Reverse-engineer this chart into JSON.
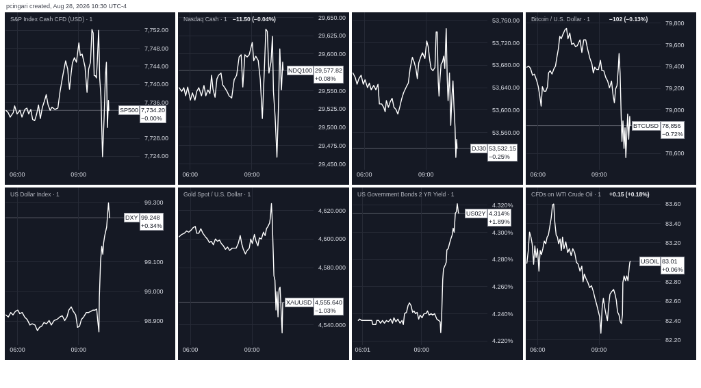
{
  "chart_data": [
    {
      "type": "line",
      "title": "S&P Index Cash CFD (USD) · 1",
      "annotations": [
        "pcingari created, Aug 28, 2026 10:30 UTC-4"
      ],
      "x": [
        5.44,
        5.55,
        5.65,
        5.8,
        5.87,
        5.99,
        6.13,
        6.23,
        6.37,
        6.47,
        6.56,
        6.66,
        6.75,
        6.85,
        6.94,
        7.04,
        7.13,
        7.23,
        7.34,
        7.42,
        7.51,
        7.61,
        7.7,
        7.85,
        7.99,
        8.09,
        8.23,
        8.37,
        8.47,
        8.56,
        8.64,
        8.7,
        8.8,
        8.9,
        9.02,
        9.09,
        9.18,
        9.32,
        9.42,
        9.5,
        9.59,
        9.66,
        9.72,
        9.77,
        9.83,
        9.88,
        9.92,
        9.99,
        10.04,
        10.1,
        10.18,
        10.26,
        10.32,
        10.37,
        10.42,
        10.47,
        10.49
      ],
      "series": [
        {
          "color": "#ffffff",
          "values": [
            7734.2,
            7733.7,
            7732.7,
            7733.7,
            7735.2,
            7733.4,
            7734.2,
            7732.7,
            7734.4,
            7734.7,
            7733.4,
            7734.4,
            7732.2,
            7731.9,
            7733.2,
            7735.4,
            7732.4,
            7734.9,
            7736.4,
            7737.7,
            7735.4,
            7734.2,
            7734.9,
            7734.4,
            7734.7,
            7738.2,
            7741.9,
            7745.2,
            7743.4,
            7738.9,
            7742.4,
            7744.7,
            7745.9,
            7744.9,
            7749.2,
            7746.4,
            7746.7,
            7743.9,
            7738.2,
            7743.4,
            7744.9,
            7752.2,
            7751.4,
            7741.9,
            7741.9,
            7741.4,
            7744.9,
            7752.0,
            7741.4,
            7737.4,
            7723.9,
            7732.9,
            7741.9,
            7744.9,
            7730.4,
            7736.4,
            7734.2
          ]
        }
      ],
      "xlim": [
        5.42,
        12.0
      ],
      "xticks": [
        {
          "value": 6,
          "label": "06:00"
        },
        {
          "value": 9,
          "label": "09:00"
        }
      ],
      "ylim": [
        7721,
        7756
      ],
      "yticks": [
        {
          "value": 7724,
          "label": "7,724.00"
        },
        {
          "value": 7728,
          "label": "7,728.00"
        },
        {
          "value": 7736,
          "label": "7,736.00"
        },
        {
          "value": 7740,
          "label": "7,740.00"
        },
        {
          "value": 7744,
          "label": "7,744.00"
        },
        {
          "value": 7748,
          "label": "7,748.00"
        },
        {
          "value": 7752,
          "label": "7,752.00"
        }
      ],
      "grid": true,
      "ref_lines": [
        {
          "axis": "y",
          "value": 7734.2,
          "label": "SP500\n7,734.20\n−0.00%",
          "color": "#5d606b"
        }
      ]
    },
    {
      "type": "line",
      "title": "Nasdaq Cash · 1",
      "subtitle": "−11.50 (−0.04%)",
      "x": [
        5.46,
        5.59,
        5.69,
        5.78,
        5.88,
        6.01,
        6.11,
        6.23,
        6.32,
        6.42,
        6.55,
        6.67,
        6.76,
        6.86,
        6.96,
        7.04,
        7.11,
        7.21,
        7.3,
        7.38,
        7.5,
        7.58,
        7.68,
        7.79,
        7.89,
        8.02,
        8.14,
        8.26,
        8.38,
        8.48,
        8.56,
        8.66,
        8.77,
        8.87,
        9.02,
        9.09,
        9.19,
        9.31,
        9.41,
        9.51,
        9.61,
        9.68,
        9.75,
        9.83,
        9.93,
        10.0,
        10.05,
        10.13,
        10.22,
        10.29,
        10.36,
        10.44,
        10.5,
        10.52
      ],
      "series": [
        {
          "color": "#ffffff",
          "values": [
            29554,
            29549,
            29554,
            29543,
            29555,
            29537,
            29547,
            29537,
            29549,
            29554,
            29543,
            29557,
            29543,
            29551,
            29546,
            29571,
            29552,
            29541,
            29566,
            29571,
            29574,
            29558,
            29554,
            29549,
            29543,
            29540,
            29565,
            29571,
            29596,
            29599,
            29555,
            29599,
            29596,
            29599,
            29616,
            29591,
            29597,
            29591,
            29565,
            29512,
            29580,
            29634,
            29631,
            29574,
            29589,
            29624,
            29549,
            29515,
            29459,
            29524,
            29607,
            29551,
            29589,
            29578
          ]
        }
      ],
      "xlim": [
        5.44,
        12.0
      ],
      "xticks": [
        {
          "value": 6,
          "label": "06:00"
        },
        {
          "value": 9,
          "label": "09:00"
        }
      ],
      "ylim": [
        29442,
        29657
      ],
      "yticks": [
        {
          "value": 29450,
          "label": "29,450.00"
        },
        {
          "value": 29475,
          "label": "29,475.00"
        },
        {
          "value": 29500,
          "label": "29,500.00"
        },
        {
          "value": 29525,
          "label": "29,525.00"
        },
        {
          "value": 29550,
          "label": "29,550.00"
        },
        {
          "value": 29600,
          "label": "29,600.00"
        },
        {
          "value": 29625,
          "label": "29,625.00"
        },
        {
          "value": 29650,
          "label": "29,650.00"
        }
      ],
      "grid": true,
      "ref_lines": [
        {
          "axis": "y",
          "value": 29577.82,
          "label": "NDQ100\n29,577.82\n+0.08%",
          "color": "#5d606b"
        }
      ]
    },
    {
      "type": "line",
      "x": [
        5.44,
        5.55,
        5.64,
        5.73,
        5.84,
        5.94,
        6.03,
        6.15,
        6.24,
        6.33,
        6.45,
        6.56,
        6.66,
        6.73,
        6.84,
        6.94,
        7.01,
        7.07,
        7.17,
        7.26,
        7.35,
        7.44,
        7.54,
        7.63,
        7.72,
        7.81,
        7.91,
        8.05,
        8.14,
        8.23,
        8.34,
        8.42,
        8.51,
        8.58,
        8.65,
        8.74,
        8.83,
        8.95,
        9.04,
        9.11,
        9.19,
        9.25,
        9.34,
        9.44,
        9.5,
        9.55,
        9.6,
        9.64,
        9.69,
        9.74,
        9.81,
        9.87,
        9.92,
        9.99,
        10.04,
        10.08,
        10.15,
        10.21,
        10.27,
        10.32,
        10.37,
        10.42,
        10.46,
        10.5,
        10.52
      ],
      "series": [
        {
          "color": "#ffffff",
          "values": [
            53666,
            53658,
            53646,
            53656,
            53662,
            53646,
            53654,
            53640,
            53648,
            53636,
            53644,
            53636,
            53646,
            53611,
            53611,
            53605,
            53597,
            53617,
            53605,
            53615,
            53621,
            53605,
            53601,
            53593,
            53605,
            53619,
            53631,
            53642,
            53648,
            53674,
            53694,
            53686,
            53674,
            53656,
            53684,
            53694,
            53702,
            53692,
            53723,
            53713,
            53688,
            53674,
            53670,
            53676,
            53739,
            53739,
            53650,
            53625,
            53658,
            53682,
            53686,
            53696,
            53674,
            53745,
            53654,
            53617,
            53666,
            53573,
            53625,
            53652,
            53605,
            53569,
            53516,
            53548,
            53532
          ]
        }
      ],
      "xlim": [
        5.42,
        12.0
      ],
      "xticks": [
        {
          "value": 6,
          "label": "06:00"
        },
        {
          "value": 9,
          "label": "09:00"
        }
      ],
      "ylim": [
        53494,
        53774
      ],
      "yticks": [
        {
          "value": 53560,
          "label": "53,560.00"
        },
        {
          "value": 53600,
          "label": "53,600.00"
        },
        {
          "value": 53640,
          "label": "53,640.00"
        },
        {
          "value": 53680,
          "label": "53,680.00"
        },
        {
          "value": 53720,
          "label": "53,720.00"
        },
        {
          "value": 53760,
          "label": "53,760.00"
        }
      ],
      "grid": true,
      "ref_lines": [
        {
          "axis": "y",
          "value": 53532.15,
          "label": "DJ30\n53,532.15\n−0.25%",
          "color": "#5d606b"
        }
      ]
    },
    {
      "type": "line",
      "title": "Bitcoin / U.S. Dollar · 1",
      "subtitle": "−102 (−0.13%)",
      "x": [
        5.46,
        5.55,
        5.64,
        5.74,
        5.83,
        5.93,
        6.02,
        6.09,
        6.16,
        6.22,
        6.3,
        6.39,
        6.47,
        6.52,
        6.6,
        6.69,
        6.79,
        6.86,
        6.93,
        7.0,
        7.07,
        7.14,
        7.23,
        7.33,
        7.4,
        7.47,
        7.56,
        7.65,
        7.75,
        7.84,
        7.93,
        8.06,
        8.15,
        8.24,
        8.34,
        8.43,
        8.54,
        8.64,
        8.71,
        8.78,
        8.87,
        8.96,
        9.06,
        9.13,
        9.22,
        9.32,
        9.41,
        9.5,
        9.6,
        9.68,
        9.74,
        9.8,
        9.87,
        9.93,
        9.97,
        10.02,
        10.07,
        10.11,
        10.16,
        10.21,
        10.26,
        10.3,
        10.35,
        10.39,
        10.44,
        10.49,
        10.51
      ],
      "series": [
        {
          "color": "#ffffff",
          "values": [
            79394,
            79404,
            79383,
            79320,
            79331,
            79278,
            79215,
            79131,
            79036,
            79215,
            79173,
            79173,
            79215,
            79341,
            79362,
            79331,
            79383,
            79404,
            79488,
            79562,
            79678,
            79657,
            79699,
            79741,
            79752,
            79657,
            79710,
            79604,
            79615,
            79583,
            79594,
            79646,
            79531,
            79646,
            79646,
            79562,
            79478,
            79425,
            79341,
            79394,
            79373,
            79373,
            79457,
            79362,
            79362,
            79299,
            79267,
            79204,
            79267,
            79131,
            79067,
            79194,
            79225,
            79383,
            79520,
            79341,
            78962,
            78710,
            78899,
            78646,
            78836,
            78562,
            78794,
            78962,
            78731,
            78941,
            78856
          ]
        }
      ],
      "xlim": [
        5.44,
        12.0
      ],
      "xticks": [
        {
          "value": 6,
          "label": "06:00"
        },
        {
          "value": 9,
          "label": "09:00"
        }
      ],
      "ylim": [
        78450,
        79900
      ],
      "yticks": [
        {
          "value": 78600,
          "label": "78,600"
        },
        {
          "value": 79000,
          "label": "79,000"
        },
        {
          "value": 79200,
          "label": "79,200"
        },
        {
          "value": 79400,
          "label": "79,400"
        },
        {
          "value": 79600,
          "label": "79,600"
        },
        {
          "value": 79800,
          "label": "79,800"
        }
      ],
      "grid": true,
      "ref_lines": [
        {
          "axis": "y",
          "value": 78856,
          "label": "BTCUSD\n78,856\n−0.72%",
          "color": "#5d606b"
        }
      ]
    },
    {
      "type": "line",
      "title": "US Dollar Index · 1",
      "x": [
        5.43,
        5.55,
        5.67,
        5.78,
        5.9,
        6.02,
        6.11,
        6.23,
        6.35,
        6.47,
        6.61,
        6.72,
        6.86,
        6.98,
        7.08,
        7.19,
        7.3,
        7.43,
        7.55,
        7.66,
        7.8,
        7.94,
        8.08,
        8.2,
        8.32,
        8.43,
        8.52,
        8.64,
        8.74,
        8.86,
        8.95,
        9.05,
        9.14,
        9.25,
        9.38,
        9.49,
        9.61,
        9.7,
        9.81,
        9.89,
        9.94,
        10.0,
        10.02,
        10.08,
        10.14,
        10.19,
        10.23,
        10.28,
        10.33,
        10.38,
        10.42,
        10.47,
        10.5,
        10.52
      ],
      "series": [
        {
          "color": "#ffffff",
          "values": [
            98.921,
            98.914,
            98.929,
            98.921,
            98.933,
            98.937,
            98.925,
            98.929,
            98.914,
            98.906,
            98.887,
            98.891,
            98.887,
            98.868,
            98.879,
            98.883,
            98.895,
            98.891,
            98.902,
            98.887,
            98.902,
            98.906,
            98.914,
            98.918,
            98.902,
            98.914,
            98.937,
            98.948,
            98.933,
            98.921,
            98.879,
            98.883,
            98.906,
            98.914,
            98.929,
            98.929,
            98.933,
            98.937,
            98.937,
            98.941,
            98.902,
            98.864,
            98.979,
            99.102,
            99.152,
            99.125,
            99.163,
            99.186,
            99.202,
            99.217,
            99.255,
            99.298,
            99.271,
            99.248
          ]
        }
      ],
      "xlim": [
        5.41,
        12.0
      ],
      "xticks": [
        {
          "value": 6,
          "label": "06:00"
        },
        {
          "value": 9,
          "label": "09:00"
        }
      ],
      "ylim": [
        98.82,
        99.35
      ],
      "yticks": [
        {
          "value": 98.9,
          "label": "98.900"
        },
        {
          "value": 99.0,
          "label": "99.000"
        },
        {
          "value": 99.1,
          "label": "99.100"
        },
        {
          "value": 99.3,
          "label": "99.300"
        }
      ],
      "grid": true,
      "ref_lines": [
        {
          "axis": "y",
          "value": 99.248,
          "label": "DXY\n99.248\n+0.34%",
          "color": "#5d606b"
        }
      ]
    },
    {
      "type": "line",
      "title": "Gold Spot / U.S. Dollar · 1",
      "x": [
        5.45,
        5.58,
        5.7,
        5.82,
        5.92,
        6.05,
        6.14,
        6.24,
        6.31,
        6.41,
        6.51,
        6.61,
        6.73,
        6.83,
        6.92,
        7.02,
        7.12,
        7.22,
        7.32,
        7.42,
        7.51,
        7.61,
        7.71,
        7.81,
        7.91,
        8.04,
        8.13,
        8.23,
        8.33,
        8.43,
        8.5,
        8.58,
        8.68,
        8.77,
        8.87,
        8.94,
        9.02,
        9.12,
        9.2,
        9.29,
        9.36,
        9.46,
        9.56,
        9.64,
        9.71,
        9.78,
        9.86,
        9.9,
        9.95,
        9.99,
        10.03,
        10.07,
        10.12,
        10.17,
        10.22,
        10.27,
        10.32,
        10.37,
        10.42,
        10.47,
        10.5,
        10.52
      ],
      "series": [
        {
          "color": "#ffffff",
          "values": [
            4601.6,
            4603.2,
            4604.0,
            4605.6,
            4604.8,
            4606.4,
            4608.0,
            4608.8,
            4604.0,
            4604.0,
            4607.2,
            4604.0,
            4601.6,
            4600.0,
            4597.6,
            4598.4,
            4596.0,
            4600.0,
            4598.4,
            4599.2,
            4596.8,
            4595.2,
            4592.8,
            4594.4,
            4592.0,
            4593.6,
            4593.6,
            4593.6,
            4596.8,
            4602.4,
            4596.8,
            4592.8,
            4589.6,
            4592.0,
            4593.6,
            4600.0,
            4596.8,
            4603.2,
            4598.4,
            4595.2,
            4600.8,
            4600.0,
            4604.8,
            4602.4,
            4607.2,
            4608.8,
            4611.2,
            4615.2,
            4624.8,
            4612.8,
            4593.6,
            4574.4,
            4571.2,
            4550.4,
            4563.2,
            4545.6,
            4564.8,
            4566.4,
            4550.4,
            4534.4,
            4555.2,
            4555.6
          ]
        }
      ],
      "xlim": [
        5.43,
        12.0
      ],
      "xticks": [
        {
          "value": 6,
          "label": "06:00"
        },
        {
          "value": 9,
          "label": "09:00"
        }
      ],
      "ylim": [
        4526,
        4636
      ],
      "yticks": [
        {
          "value": 4540,
          "label": "4,540.000"
        },
        {
          "value": 4580,
          "label": "4,580.000"
        },
        {
          "value": 4600,
          "label": "4,600.000"
        },
        {
          "value": 4620,
          "label": "4,620.000"
        }
      ],
      "grid": true,
      "ref_lines": [
        {
          "axis": "y",
          "value": 4555.64,
          "label": "XAUUSD\n4,555.640\n−1.03%",
          "color": "#5d606b"
        }
      ]
    },
    {
      "type": "line",
      "title": "US Government Bonds 2 YR Yield · 1",
      "x": [
        5.79,
        5.86,
        5.97,
        6.12,
        6.22,
        6.48,
        6.53,
        6.68,
        6.73,
        6.83,
        6.92,
        7.02,
        7.12,
        7.22,
        7.32,
        7.43,
        7.53,
        7.6,
        7.7,
        7.8,
        7.91,
        8.01,
        8.08,
        8.14,
        8.24,
        8.32,
        8.39,
        8.47,
        8.55,
        8.62,
        8.7,
        8.78,
        8.86,
        8.93,
        9.03,
        9.13,
        9.23,
        9.31,
        9.39,
        9.49,
        9.57,
        9.67,
        9.78,
        9.88,
        9.95,
        9.98,
        10.02,
        10.08,
        10.12,
        10.21,
        10.26,
        10.29,
        10.36,
        10.43,
        10.49,
        10.56,
        10.61,
        10.66,
        10.72,
        10.77,
        10.82,
        10.87,
        10.89
      ],
      "series": [
        {
          "color": "#ffffff",
          "values": [
            4.235,
            4.236,
            4.235,
            4.235,
            4.235,
            4.235,
            4.232,
            4.232,
            4.235,
            4.235,
            4.233,
            4.235,
            4.233,
            4.235,
            4.234,
            4.236,
            4.233,
            4.237,
            4.234,
            4.236,
            4.233,
            4.235,
            4.232,
            4.24,
            4.241,
            4.246,
            4.248,
            4.246,
            4.241,
            4.242,
            4.24,
            4.241,
            4.236,
            4.239,
            4.237,
            4.24,
            4.24,
            4.242,
            4.239,
            4.24,
            4.239,
            4.24,
            4.236,
            4.235,
            4.234,
            4.226,
            4.235,
            4.265,
            4.273,
            4.276,
            4.278,
            4.287,
            4.288,
            4.292,
            4.295,
            4.298,
            4.303,
            4.3,
            4.314,
            4.315,
            4.321,
            4.315,
            4.314
          ]
        }
      ],
      "xlim": [
        5.5,
        12.35
      ],
      "xticks": [
        {
          "value": 6.0167,
          "label": "06:01"
        },
        {
          "value": 9,
          "label": "09:00"
        }
      ],
      "ylim": [
        4.217,
        4.333
      ],
      "yticks": [
        {
          "value": 4.22,
          "label": "4.220%"
        },
        {
          "value": 4.24,
          "label": "4.240%"
        },
        {
          "value": 4.26,
          "label": "4.260%"
        },
        {
          "value": 4.28,
          "label": "4.280%"
        },
        {
          "value": 4.3,
          "label": "4.300%"
        },
        {
          "value": 4.32,
          "label": "4.320%"
        }
      ],
      "grid": true,
      "ref_lines": [
        {
          "axis": "y",
          "value": 4.314,
          "label": "US02Y\n4.314%\n+1.89%",
          "color": "#5d606b"
        }
      ]
    },
    {
      "type": "line",
      "title": "CFDs on WTI Crude Oil · 1",
      "subtitle": "+0.15 (+0.18%)",
      "x": [
        5.48,
        5.55,
        5.61,
        5.68,
        5.74,
        5.81,
        5.87,
        5.93,
        6.0,
        6.07,
        6.13,
        6.19,
        6.26,
        6.33,
        6.4,
        6.47,
        6.53,
        6.6,
        6.67,
        6.73,
        6.79,
        6.84,
        6.91,
        6.97,
        7.03,
        7.1,
        7.16,
        7.22,
        7.29,
        7.38,
        7.47,
        7.55,
        7.64,
        7.72,
        7.81,
        7.9,
        7.98,
        8.07,
        8.16,
        8.22,
        8.28,
        8.37,
        8.46,
        8.54,
        8.63,
        8.72,
        8.8,
        8.89,
        8.97,
        9.03,
        9.09,
        9.15,
        9.21,
        9.28,
        9.34,
        9.41,
        9.47,
        9.53,
        9.62,
        9.71,
        9.78,
        9.84,
        9.9,
        9.97,
        10.03,
        10.09,
        10.14,
        10.16,
        10.22,
        10.29,
        10.35,
        10.41,
        10.47,
        10.5,
        10.52
      ],
      "series": [
        {
          "color": "#ffffff",
          "values": [
            82.99,
            83.12,
            83.31,
            83.26,
            83.19,
            82.98,
            83.17,
            83.05,
            83.14,
            82.91,
            83.12,
            83.08,
            83.14,
            83.22,
            83.19,
            83.26,
            83.28,
            83.37,
            83.46,
            83.59,
            83.6,
            83.42,
            83.28,
            83.26,
            83.19,
            83.24,
            83.12,
            83.26,
            83.14,
            83.21,
            83.1,
            83.14,
            83.07,
            83.14,
            83.1,
            83.0,
            82.98,
            82.91,
            82.96,
            82.8,
            82.88,
            82.83,
            82.79,
            82.74,
            82.76,
            82.7,
            82.63,
            82.56,
            82.49,
            82.44,
            82.27,
            82.53,
            82.63,
            82.53,
            82.46,
            82.4,
            82.56,
            82.67,
            82.7,
            82.72,
            82.67,
            82.61,
            82.49,
            82.46,
            82.39,
            82.37,
            82.46,
            82.79,
            82.86,
            82.81,
            82.86,
            82.81,
            82.95,
            83.0,
            83.01
          ]
        }
      ],
      "xlim": [
        5.46,
        12.0
      ],
      "xticks": [
        {
          "value": 6,
          "label": "06:00"
        },
        {
          "value": 9,
          "label": "09:00"
        }
      ],
      "ylim": [
        82.15,
        83.77
      ],
      "yticks": [
        {
          "value": 82.2,
          "label": "82.20"
        },
        {
          "value": 82.4,
          "label": "82.40"
        },
        {
          "value": 82.6,
          "label": "82.60"
        },
        {
          "value": 82.8,
          "label": "82.80"
        },
        {
          "value": 83.2,
          "label": "83.20"
        },
        {
          "value": 83.4,
          "label": "83.40"
        },
        {
          "value": 83.6,
          "label": "83.60"
        }
      ],
      "grid": true,
      "ref_lines": [
        {
          "axis": "y",
          "value": 83.01,
          "label": "USOIL\n83.01\n+0.06%",
          "color": "#5d606b"
        }
      ]
    }
  ]
}
